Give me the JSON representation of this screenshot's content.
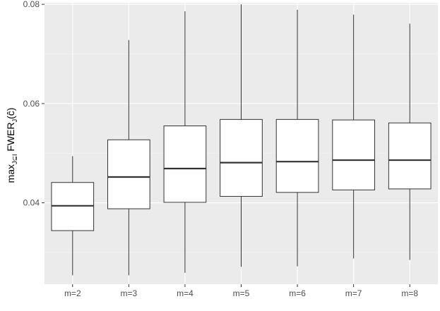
{
  "chart_data": {
    "type": "boxplot",
    "title": "",
    "xlabel": "",
    "ylabel": {
      "base": "max",
      "sub": "J⊆I",
      "mid": " FWER",
      "sub2": "J",
      "tail": "(ĉ)"
    },
    "ylim": [
      0.0236,
      0.0803
    ],
    "yticks": [
      0.04,
      0.06,
      0.08
    ],
    "ytick_labels": [
      "0.04",
      "0.06",
      "0.08"
    ],
    "ygrid_minor": [
      0.03,
      0.05,
      0.07
    ],
    "grid": true,
    "legend": "none",
    "colors": {
      "panel": "#ebebeb",
      "grid_major": "#ffffff",
      "box_fill": "#ffffff",
      "box_line": "#333333",
      "median_line": "#333333",
      "tick_text": "#4d4d4d"
    },
    "categories": [
      "m=2",
      "m=3",
      "m=4",
      "m=5",
      "m=6",
      "m=7",
      "m=8"
    ],
    "boxes": [
      {
        "label": "m=2",
        "whisker_low": 0.0254,
        "q1": 0.0344,
        "median": 0.0394,
        "q3": 0.0441,
        "whisker_high": 0.0494
      },
      {
        "label": "m=3",
        "whisker_low": 0.0254,
        "q1": 0.0388,
        "median": 0.0452,
        "q3": 0.0527,
        "whisker_high": 0.0728
      },
      {
        "label": "m=4",
        "whisker_low": 0.0259,
        "q1": 0.0401,
        "median": 0.0469,
        "q3": 0.0555,
        "whisker_high": 0.0786
      },
      {
        "label": "m=5",
        "whisker_low": 0.0271,
        "q1": 0.0413,
        "median": 0.0481,
        "q3": 0.0568,
        "whisker_high": 0.08
      },
      {
        "label": "m=6",
        "whisker_low": 0.0272,
        "q1": 0.0421,
        "median": 0.0483,
        "q3": 0.0568,
        "whisker_high": 0.0789
      },
      {
        "label": "m=7",
        "whisker_low": 0.0288,
        "q1": 0.0426,
        "median": 0.0486,
        "q3": 0.0567,
        "whisker_high": 0.0779
      },
      {
        "label": "m=8",
        "whisker_low": 0.0285,
        "q1": 0.0428,
        "median": 0.0486,
        "q3": 0.0561,
        "whisker_high": 0.0761
      }
    ]
  }
}
